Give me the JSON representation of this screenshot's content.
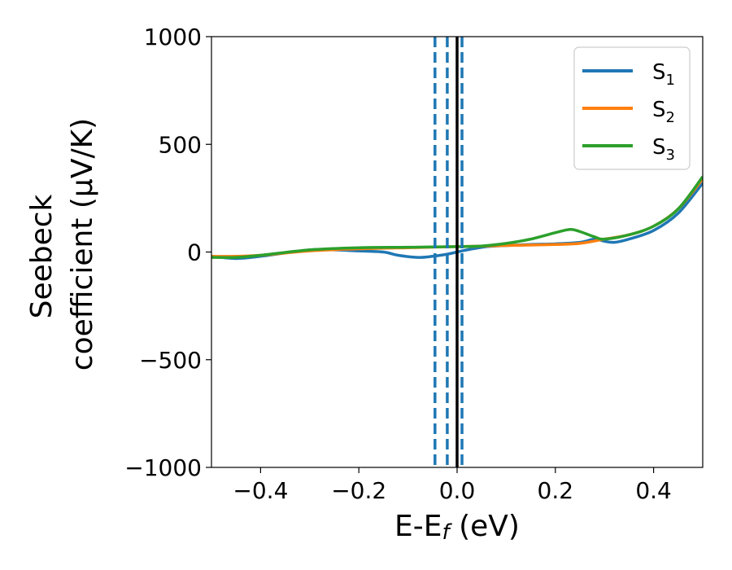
{
  "chart_data": {
    "type": "line",
    "xlabel": "E-E",
    "xlabel_sub": "f",
    "xlabel_unit": " (eV)",
    "ylabel_line1": "Seebeck",
    "ylabel_line2": "coefficient  (μV/K)",
    "xlim": [
      -0.5,
      0.5
    ],
    "ylim": [
      -1000,
      1000
    ],
    "xticks": [
      -0.4,
      -0.2,
      0.0,
      0.2,
      0.4
    ],
    "xtick_labels": [
      "−0.4",
      "−0.2",
      "0.0",
      "0.2",
      "0.4"
    ],
    "yticks": [
      -1000,
      -500,
      0,
      500,
      1000
    ],
    "ytick_labels": [
      "−1000",
      "−500",
      "0",
      "500",
      "1000"
    ],
    "vlines": [
      {
        "x": -0.045,
        "style": "dashed",
        "color": "#1f77b4"
      },
      {
        "x": -0.02,
        "style": "dashed",
        "color": "#1f77b4"
      },
      {
        "x": 0.01,
        "style": "dashed",
        "color": "#1f77b4"
      },
      {
        "x": 0.0,
        "style": "solid",
        "color": "#000000"
      }
    ],
    "legend_position": "top-right",
    "series": [
      {
        "name": "S",
        "sub": "1",
        "color": "#1f77b4",
        "points": [
          [
            -0.5,
            -20
          ],
          [
            -0.45,
            -30
          ],
          [
            -0.4,
            -20
          ],
          [
            -0.3,
            10
          ],
          [
            -0.25,
            10
          ],
          [
            -0.2,
            5
          ],
          [
            -0.15,
            0
          ],
          [
            -0.12,
            -15
          ],
          [
            -0.08,
            -25
          ],
          [
            -0.05,
            -20
          ],
          [
            -0.02,
            -10
          ],
          [
            0.0,
            0
          ],
          [
            0.02,
            10
          ],
          [
            0.06,
            25
          ],
          [
            0.1,
            30
          ],
          [
            0.15,
            35
          ],
          [
            0.2,
            38
          ],
          [
            0.25,
            45
          ],
          [
            0.28,
            60
          ],
          [
            0.3,
            50
          ],
          [
            0.32,
            45
          ],
          [
            0.35,
            60
          ],
          [
            0.4,
            100
          ],
          [
            0.45,
            180
          ],
          [
            0.5,
            320
          ]
        ]
      },
      {
        "name": "S",
        "sub": "2",
        "color": "#ff7f0e",
        "points": [
          [
            -0.5,
            -20
          ],
          [
            -0.45,
            -20
          ],
          [
            -0.4,
            -15
          ],
          [
            -0.3,
            5
          ],
          [
            -0.2,
            15
          ],
          [
            -0.1,
            20
          ],
          [
            0.0,
            25
          ],
          [
            0.1,
            30
          ],
          [
            0.2,
            35
          ],
          [
            0.25,
            40
          ],
          [
            0.3,
            60
          ],
          [
            0.35,
            80
          ],
          [
            0.4,
            120
          ],
          [
            0.45,
            200
          ],
          [
            0.5,
            340
          ]
        ]
      },
      {
        "name": "S",
        "sub": "3",
        "color": "#2ca02c",
        "points": [
          [
            -0.5,
            -25
          ],
          [
            -0.45,
            -25
          ],
          [
            -0.4,
            -15
          ],
          [
            -0.3,
            10
          ],
          [
            -0.2,
            20
          ],
          [
            -0.1,
            22
          ],
          [
            0.0,
            25
          ],
          [
            0.05,
            28
          ],
          [
            0.1,
            40
          ],
          [
            0.15,
            60
          ],
          [
            0.2,
            90
          ],
          [
            0.23,
            105
          ],
          [
            0.25,
            95
          ],
          [
            0.28,
            70
          ],
          [
            0.3,
            60
          ],
          [
            0.35,
            80
          ],
          [
            0.4,
            120
          ],
          [
            0.45,
            200
          ],
          [
            0.5,
            350
          ]
        ]
      }
    ]
  }
}
